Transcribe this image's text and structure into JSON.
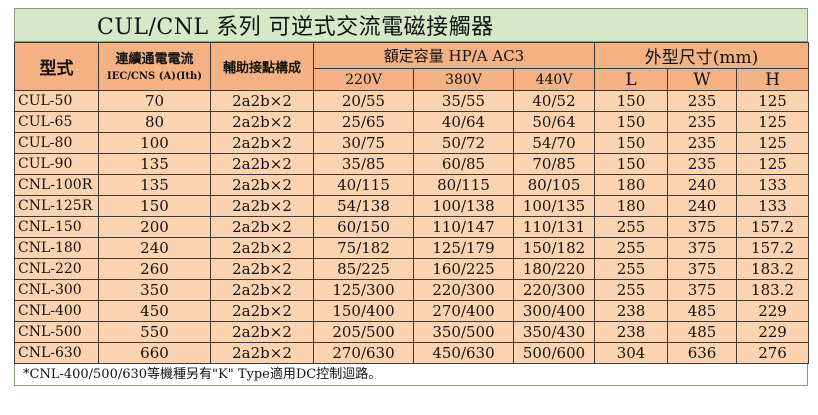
{
  "title": "CUL/CNL  系列 可逆式交流電磁接觸器",
  "headers": {
    "model": "型式",
    "amp_line1": "連續通電電流",
    "amp_line2": "IEC/CNS (A)(Ith)",
    "aux": "輔助接點構成",
    "rated_capacity": "額定容量 HP/A AC3",
    "v220": "220V",
    "v380": "380V",
    "v440": "440V",
    "dims": "外型尺寸(mm)",
    "L": "L",
    "W": "W",
    "H": "H"
  },
  "rows": [
    {
      "model": "CUL-50",
      "amp": "70",
      "aux": "2a2b×2",
      "v220": "20/55",
      "v380": "35/55",
      "v440": "40/52",
      "L": "150",
      "W": "235",
      "H": "125"
    },
    {
      "model": "CUL-65",
      "amp": "80",
      "aux": "2a2b×2",
      "v220": "25/65",
      "v380": "40/64",
      "v440": "50/64",
      "L": "150",
      "W": "235",
      "H": "125"
    },
    {
      "model": "CUL-80",
      "amp": "100",
      "aux": "2a2b×2",
      "v220": "30/75",
      "v380": "50/72",
      "v440": "54/70",
      "L": "150",
      "W": "235",
      "H": "125"
    },
    {
      "model": "CUL-90",
      "amp": "135",
      "aux": "2a2b×2",
      "v220": "35/85",
      "v380": "60/85",
      "v440": "70/85",
      "L": "150",
      "W": "235",
      "H": "125"
    },
    {
      "model": "CNL-100R",
      "amp": "135",
      "aux": "2a2b×2",
      "v220": "40/115",
      "v380": "80/115",
      "v440": "80/105",
      "L": "180",
      "W": "240",
      "H": "133"
    },
    {
      "model": "CNL-125R",
      "amp": "150",
      "aux": "2a2b×2",
      "v220": "54/138",
      "v380": "100/138",
      "v440": "100/135",
      "L": "180",
      "W": "240",
      "H": "133"
    },
    {
      "model": "CNL-150",
      "amp": "200",
      "aux": "2a2b×2",
      "v220": "60/150",
      "v380": "110/147",
      "v440": "110/131",
      "L": "255",
      "W": "375",
      "H": "157.2"
    },
    {
      "model": "CNL-180",
      "amp": "240",
      "aux": "2a2b×2",
      "v220": "75/182",
      "v380": "125/179",
      "v440": "150/182",
      "L": "255",
      "W": "375",
      "H": "157.2"
    },
    {
      "model": "CNL-220",
      "amp": "260",
      "aux": "2a2b×2",
      "v220": "85/225",
      "v380": "160/225",
      "v440": "180/220",
      "L": "255",
      "W": "375",
      "H": "183.2"
    },
    {
      "model": "CNL-300",
      "amp": "350",
      "aux": "2a2b×2",
      "v220": "125/300",
      "v380": "220/300",
      "v440": "220/300",
      "L": "255",
      "W": "375",
      "H": "183.2"
    },
    {
      "model": "CNL-400",
      "amp": "450",
      "aux": "2a2b×2",
      "v220": "150/400",
      "v380": "270/400",
      "v440": "300/400",
      "L": "238",
      "W": "485",
      "H": "229"
    },
    {
      "model": "CNL-500",
      "amp": "550",
      "aux": "2a2b×2",
      "v220": "205/500",
      "v380": "350/500",
      "v440": "350/430",
      "L": "238",
      "W": "485",
      "H": "229"
    },
    {
      "model": "CNL-630",
      "amp": "660",
      "aux": "2a2b×2",
      "v220": "270/630",
      "v380": "450/630",
      "v440": "500/600",
      "L": "304",
      "W": "636",
      "H": "276"
    }
  ],
  "note": "*CNL-400/500/630等機種另有\"K\" Type適用DC控制迴路。",
  "colors": {
    "title_bg": "#d6e8c8",
    "header_bg": "#f4b183",
    "cell_bg": "#fbd3b0",
    "border": "#3a3a3a"
  }
}
